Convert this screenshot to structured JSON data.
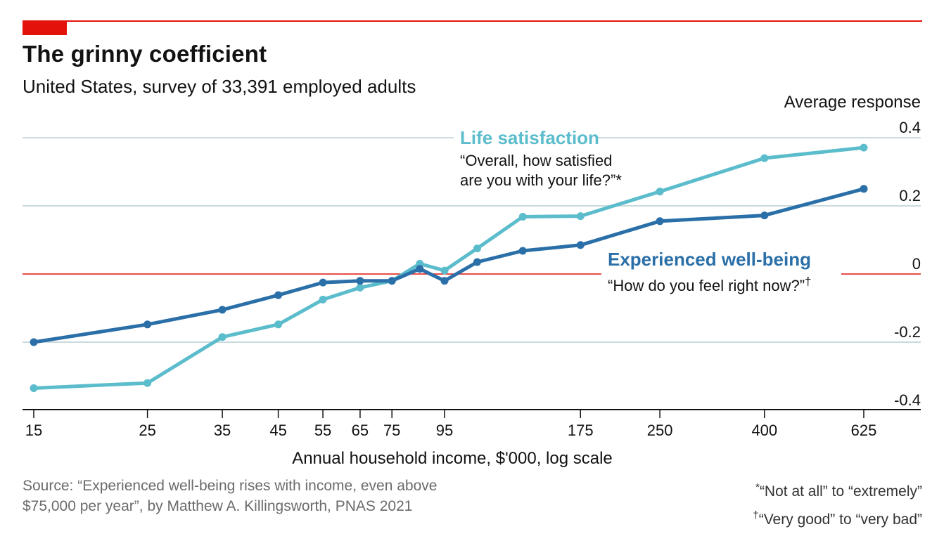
{
  "header": {
    "title": "The grinny coefficient",
    "subtitle": "United States, survey of 33,391 employed adults"
  },
  "chart_data": {
    "type": "line",
    "xscale": "log",
    "xlabel": "Annual household income, $'000, log scale",
    "ylabel": "Average response",
    "x_ticks": [
      15,
      25,
      35,
      45,
      55,
      65,
      75,
      95,
      175,
      250,
      400,
      625
    ],
    "y_ticks": [
      0.4,
      0.2,
      0,
      -0.2,
      -0.4
    ],
    "y_tick_labels": [
      "0.4",
      "0.2",
      "0",
      "-0.2",
      "-0.4"
    ],
    "xlim": [
      14.5,
      700
    ],
    "ylim": [
      -0.4,
      0.4
    ],
    "grid": true,
    "zero_line_color": "#e3120b",
    "series": [
      {
        "name": "Life satisfaction",
        "description": "“Overall, how satisfied are you with your life?”*",
        "color": "#5bbccc",
        "x": [
          15,
          25,
          35,
          45,
          55,
          65,
          75,
          85,
          95,
          110,
          135,
          175,
          250,
          400,
          625
        ],
        "y": [
          -0.335,
          -0.32,
          -0.185,
          -0.148,
          -0.075,
          -0.04,
          -0.02,
          0.03,
          0.01,
          0.075,
          0.168,
          0.17,
          0.242,
          0.34,
          0.371
        ]
      },
      {
        "name": "Experienced well-being",
        "description": "“How do you feel right now?”†",
        "color": "#2a6fa8",
        "x": [
          15,
          25,
          35,
          45,
          55,
          65,
          75,
          85,
          95,
          110,
          135,
          175,
          250,
          400,
          625
        ],
        "y": [
          -0.2,
          -0.148,
          -0.105,
          -0.062,
          -0.025,
          -0.02,
          -0.02,
          0.015,
          -0.02,
          0.035,
          0.068,
          0.085,
          0.155,
          0.172,
          0.25
        ]
      }
    ]
  },
  "footer": {
    "source_line1": "Source: “Experienced well-being rises with income, even above",
    "source_line2": "$75,000 per year”, by Matthew A. Killingsworth, PNAS 2021",
    "footnote1_mark": "*",
    "footnote1_text": "“Not at all” to “extremely”",
    "footnote2_mark": "†",
    "footnote2_text": "“Very good” to “very bad”"
  }
}
